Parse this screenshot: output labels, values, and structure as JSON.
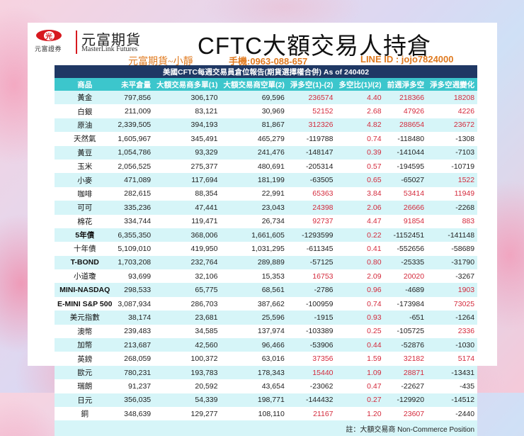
{
  "header": {
    "logo": {
      "mark": "光",
      "sub_text": "元富證券",
      "name_cn": "元富期貨",
      "name_en": "MasterLink Futures"
    },
    "title": "CFTC大額交易人持倉",
    "contact": {
      "name": "元富期貨~小靜",
      "phone": "手機:0963-088-657",
      "line": "LINE ID : jojo7824000"
    }
  },
  "table": {
    "caption": "美國CFTC每週交易員倉位報告(期貨選擇權合併) As of  240402",
    "columns": [
      "商品",
      "未平倉量",
      "大額交易商多單(1)",
      "大額交易商空單(2)",
      "淨多空(1)-(2)",
      "多空比(1)/(2)",
      "前週淨多空",
      "淨多空週變化"
    ],
    "rows": [
      {
        "name": "黃金",
        "oi": "797,856",
        "long": "306,170",
        "short": "69,596",
        "net": "236574",
        "ratio": "4.40",
        "prev": "218366",
        "chg": "18208",
        "bold": false
      },
      {
        "name": "白銀",
        "oi": "211,009",
        "long": "83,121",
        "short": "30,969",
        "net": "52152",
        "ratio": "2.68",
        "prev": "47926",
        "chg": "4226",
        "bold": false
      },
      {
        "name": "原油",
        "oi": "2,339,505",
        "long": "394,193",
        "short": "81,867",
        "net": "312326",
        "ratio": "4.82",
        "prev": "288654",
        "chg": "23672",
        "bold": false
      },
      {
        "name": "天然氣",
        "oi": "1,605,967",
        "long": "345,491",
        "short": "465,279",
        "net": "-119788",
        "ratio": "0.74",
        "prev": "-118480",
        "chg": "-1308",
        "bold": false
      },
      {
        "name": "黃豆",
        "oi": "1,054,786",
        "long": "93,329",
        "short": "241,476",
        "net": "-148147",
        "ratio": "0.39",
        "prev": "-141044",
        "chg": "-7103",
        "bold": false
      },
      {
        "name": "玉米",
        "oi": "2,056,525",
        "long": "275,377",
        "short": "480,691",
        "net": "-205314",
        "ratio": "0.57",
        "prev": "-194595",
        "chg": "-10719",
        "bold": false
      },
      {
        "name": "小麥",
        "oi": "471,089",
        "long": "117,694",
        "short": "181,199",
        "net": "-63505",
        "ratio": "0.65",
        "prev": "-65027",
        "chg": "1522",
        "bold": false
      },
      {
        "name": "咖啡",
        "oi": "282,615",
        "long": "88,354",
        "short": "22,991",
        "net": "65363",
        "ratio": "3.84",
        "prev": "53414",
        "chg": "11949",
        "bold": false
      },
      {
        "name": "可可",
        "oi": "335,236",
        "long": "47,441",
        "short": "23,043",
        "net": "24398",
        "ratio": "2.06",
        "prev": "26666",
        "chg": "-2268",
        "bold": false
      },
      {
        "name": "棉花",
        "oi": "334,744",
        "long": "119,471",
        "short": "26,734",
        "net": "92737",
        "ratio": "4.47",
        "prev": "91854",
        "chg": "883",
        "bold": false
      },
      {
        "name": "5年債",
        "oi": "6,355,350",
        "long": "368,006",
        "short": "1,661,605",
        "net": "-1293599",
        "ratio": "0.22",
        "prev": "-1152451",
        "chg": "-141148",
        "bold": true
      },
      {
        "name": "十年債",
        "oi": "5,109,010",
        "long": "419,950",
        "short": "1,031,295",
        "net": "-611345",
        "ratio": "0.41",
        "prev": "-552656",
        "chg": "-58689",
        "bold": false
      },
      {
        "name": "T-BOND",
        "oi": "1,703,208",
        "long": "232,764",
        "short": "289,889",
        "net": "-57125",
        "ratio": "0.80",
        "prev": "-25335",
        "chg": "-31790",
        "bold": true
      },
      {
        "name": "小道瓊",
        "oi": "93,699",
        "long": "32,106",
        "short": "15,353",
        "net": "16753",
        "ratio": "2.09",
        "prev": "20020",
        "chg": "-3267",
        "bold": false
      },
      {
        "name": "MINI-NASDAQ",
        "oi": "298,533",
        "long": "65,775",
        "short": "68,561",
        "net": "-2786",
        "ratio": "0.96",
        "prev": "-4689",
        "chg": "1903",
        "bold": true
      },
      {
        "name": "E-MINI S&P 500",
        "oi": "3,087,934",
        "long": "286,703",
        "short": "387,662",
        "net": "-100959",
        "ratio": "0.74",
        "prev": "-173984",
        "chg": "73025",
        "bold": true
      },
      {
        "name": "美元指數",
        "oi": "38,174",
        "long": "23,681",
        "short": "25,596",
        "net": "-1915",
        "ratio": "0.93",
        "prev": "-651",
        "chg": "-1264",
        "bold": false
      },
      {
        "name": "澳幣",
        "oi": "239,483",
        "long": "34,585",
        "short": "137,974",
        "net": "-103389",
        "ratio": "0.25",
        "prev": "-105725",
        "chg": "2336",
        "bold": false
      },
      {
        "name": "加幣",
        "oi": "213,687",
        "long": "42,560",
        "short": "96,466",
        "net": "-53906",
        "ratio": "0.44",
        "prev": "-52876",
        "chg": "-1030",
        "bold": false
      },
      {
        "name": "英鎊",
        "oi": "268,059",
        "long": "100,372",
        "short": "63,016",
        "net": "37356",
        "ratio": "1.59",
        "prev": "32182",
        "chg": "5174",
        "bold": false
      },
      {
        "name": "歐元",
        "oi": "780,231",
        "long": "193,783",
        "short": "178,343",
        "net": "15440",
        "ratio": "1.09",
        "prev": "28871",
        "chg": "-13431",
        "bold": false
      },
      {
        "name": "瑞朗",
        "oi": "91,237",
        "long": "20,592",
        "short": "43,654",
        "net": "-23062",
        "ratio": "0.47",
        "prev": "-22627",
        "chg": "-435",
        "bold": false
      },
      {
        "name": "日元",
        "oi": "356,035",
        "long": "54,339",
        "short": "198,771",
        "net": "-144432",
        "ratio": "0.27",
        "prev": "-129920",
        "chg": "-14512",
        "bold": false
      },
      {
        "name": "銅",
        "oi": "348,639",
        "long": "129,277",
        "short": "108,110",
        "net": "21167",
        "ratio": "1.20",
        "prev": "23607",
        "chg": "-2440",
        "bold": false
      }
    ],
    "footnote": "註：大額交易商 Non-Commerce Position"
  },
  "colors": {
    "header_dark": "#1f3864",
    "header_teal": "#3cc6cc",
    "row_alt": "#d6f5f8",
    "positive_red": "#d42a3c",
    "contact_orange": "#e07a1f",
    "logo_red": "#d7191f"
  }
}
